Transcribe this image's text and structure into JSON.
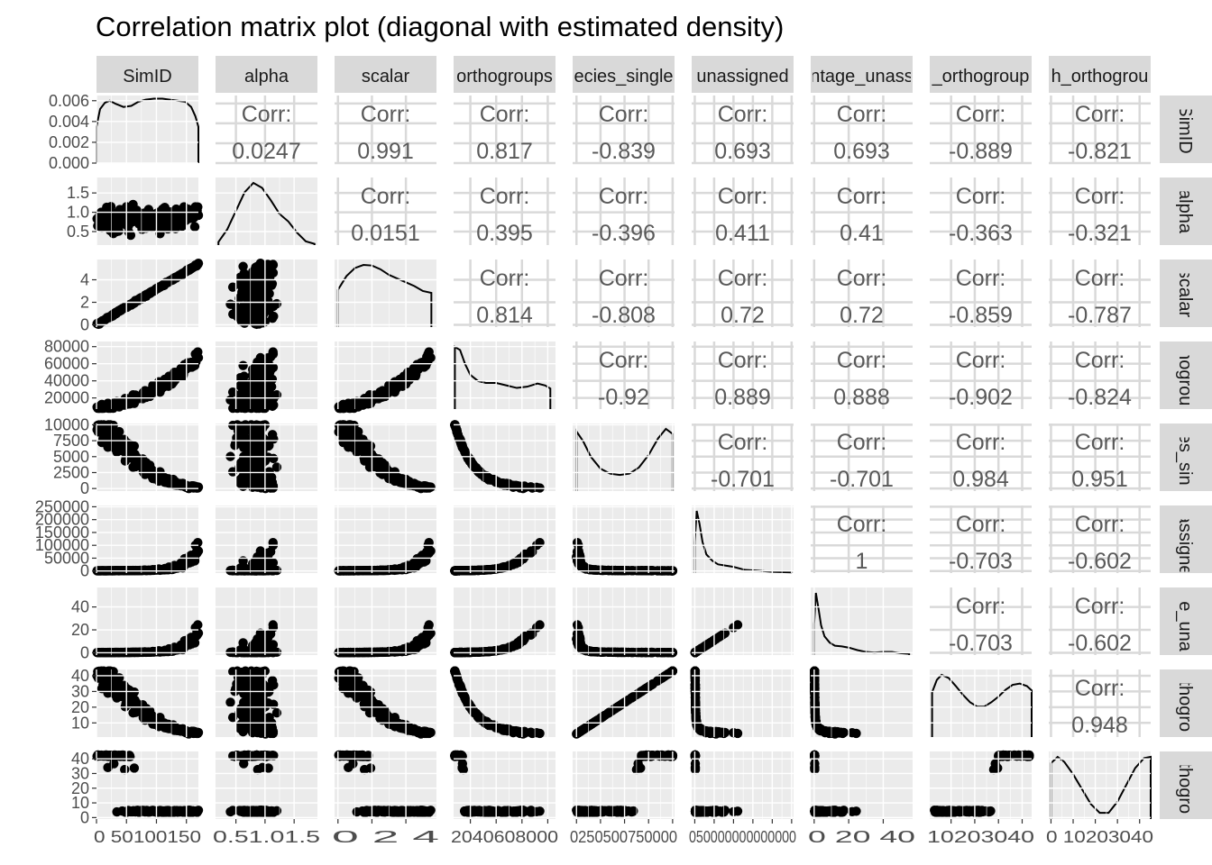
{
  "title": "Correlation matrix plot (diagonal with estimated density)",
  "chart_data": {
    "type": "scatter-matrix",
    "variables": [
      {
        "key": "SimID",
        "top_label": "SimID",
        "right_label": "SimID",
        "range": [
          0,
          170
        ],
        "ticks": [
          0,
          50,
          100,
          150
        ],
        "tick_labels": [
          "0",
          "50",
          "100",
          "150"
        ]
      },
      {
        "key": "alpha",
        "top_label": "alpha",
        "right_label": "alpha",
        "range": [
          0.15,
          1.9
        ],
        "ticks": [
          0.5,
          1.0,
          1.5
        ],
        "tick_labels": [
          "0.5",
          "1.0",
          "1.5"
        ]
      },
      {
        "key": "scalar",
        "top_label": "scalar",
        "right_label": "scalar",
        "range": [
          -0.2,
          5.8
        ],
        "ticks": [
          0,
          2,
          4
        ],
        "tick_labels": [
          "0",
          "2",
          "4"
        ]
      },
      {
        "key": "orthogroups",
        "top_label": "orthogroups",
        "right_label": "thogrou",
        "range": [
          7000,
          86000
        ],
        "ticks": [
          20000,
          40000,
          60000,
          80000
        ],
        "tick_labels": [
          "20000",
          "40000",
          "60000",
          "80000"
        ]
      },
      {
        "key": "species_single",
        "top_label": "ecies_single",
        "right_label": "ies_sin",
        "range": [
          -400,
          10200
        ],
        "ticks": [
          0,
          2500,
          5000,
          7500,
          10000
        ],
        "tick_labels": [
          "0",
          "2500",
          "5000",
          "7500",
          "10000"
        ]
      },
      {
        "key": "unassigned",
        "top_label": "unassigned",
        "right_label": "nassigne",
        "range": [
          -8000,
          255000
        ],
        "ticks": [
          0,
          50000,
          100000,
          150000,
          200000,
          250000
        ],
        "tick_labels": [
          "0",
          "50000",
          "100000",
          "150000",
          "200000",
          "250000"
        ]
      },
      {
        "key": "percentage_unassigned",
        "top_label": "ntage_unass",
        "right_label": "ge_una",
        "range": [
          -2,
          57
        ],
        "ticks": [
          0,
          20,
          40
        ],
        "tick_labels": [
          "0",
          "20",
          "40"
        ]
      },
      {
        "key": "orthogroup_a",
        "top_label": "_orthogroup",
        "right_label": "rthogro",
        "range": [
          1,
          44
        ],
        "ticks": [
          10,
          20,
          30,
          40
        ],
        "tick_labels": [
          "10",
          "20",
          "30",
          "40"
        ]
      },
      {
        "key": "orthogroup_b",
        "top_label": "h_orthogrou",
        "right_label": "rthogro",
        "range": [
          -1,
          45
        ],
        "ticks": [
          0,
          10,
          20,
          30,
          40
        ],
        "tick_labels": [
          "0",
          "10",
          "20",
          "30",
          "40"
        ]
      }
    ],
    "x_tick_labels_printed": [
      "0 50100150",
      "0.51.01.5",
      "0  2  4",
      "2040608000",
      "0250500750000",
      "050000000000000",
      "0  20  40",
      "10203040",
      "0 10203040"
    ],
    "density_y_axis": {
      "range": [
        0,
        0.0065
      ],
      "ticks": [
        0,
        0.002,
        0.004,
        0.006
      ],
      "tick_labels": [
        "0.000",
        "0.002",
        "0.004",
        "0.006"
      ]
    },
    "correlations": [
      {
        "row": 0,
        "col": 1,
        "label": "Corr:",
        "value": "0.0247"
      },
      {
        "row": 0,
        "col": 2,
        "label": "Corr:",
        "value": "0.991"
      },
      {
        "row": 0,
        "col": 3,
        "label": "Corr:",
        "value": "0.817"
      },
      {
        "row": 0,
        "col": 4,
        "label": "Corr:",
        "value": "-0.839"
      },
      {
        "row": 0,
        "col": 5,
        "label": "Corr:",
        "value": "0.693"
      },
      {
        "row": 0,
        "col": 6,
        "label": "Corr:",
        "value": "0.693"
      },
      {
        "row": 0,
        "col": 7,
        "label": "Corr:",
        "value": "-0.889"
      },
      {
        "row": 0,
        "col": 8,
        "label": "Corr:",
        "value": "-0.821"
      },
      {
        "row": 1,
        "col": 2,
        "label": "Corr:",
        "value": "0.0151"
      },
      {
        "row": 1,
        "col": 3,
        "label": "Corr:",
        "value": "0.395"
      },
      {
        "row": 1,
        "col": 4,
        "label": "Corr:",
        "value": "-0.396"
      },
      {
        "row": 1,
        "col": 5,
        "label": "Corr:",
        "value": "0.411"
      },
      {
        "row": 1,
        "col": 6,
        "label": "Corr:",
        "value": "0.41"
      },
      {
        "row": 1,
        "col": 7,
        "label": "Corr:",
        "value": "-0.363"
      },
      {
        "row": 1,
        "col": 8,
        "label": "Corr:",
        "value": "-0.321"
      },
      {
        "row": 2,
        "col": 3,
        "label": "Corr:",
        "value": "0.814"
      },
      {
        "row": 2,
        "col": 4,
        "label": "Corr:",
        "value": "-0.808"
      },
      {
        "row": 2,
        "col": 5,
        "label": "Corr:",
        "value": "0.72"
      },
      {
        "row": 2,
        "col": 6,
        "label": "Corr:",
        "value": "0.72"
      },
      {
        "row": 2,
        "col": 7,
        "label": "Corr:",
        "value": "-0.859"
      },
      {
        "row": 2,
        "col": 8,
        "label": "Corr:",
        "value": "-0.787"
      },
      {
        "row": 3,
        "col": 4,
        "label": "Corr:",
        "value": "-0.92"
      },
      {
        "row": 3,
        "col": 5,
        "label": "Corr:",
        "value": "0.889"
      },
      {
        "row": 3,
        "col": 6,
        "label": "Corr:",
        "value": "0.888"
      },
      {
        "row": 3,
        "col": 7,
        "label": "Corr:",
        "value": "-0.902"
      },
      {
        "row": 3,
        "col": 8,
        "label": "Corr:",
        "value": "-0.824"
      },
      {
        "row": 4,
        "col": 5,
        "label": "Corr:",
        "value": "-0.701"
      },
      {
        "row": 4,
        "col": 6,
        "label": "Corr:",
        "value": "-0.701"
      },
      {
        "row": 4,
        "col": 7,
        "label": "Corr:",
        "value": "0.984"
      },
      {
        "row": 4,
        "col": 8,
        "label": "Corr:",
        "value": "0.951"
      },
      {
        "row": 5,
        "col": 6,
        "label": "Corr:",
        "value": "1"
      },
      {
        "row": 5,
        "col": 7,
        "label": "Corr:",
        "value": "-0.703"
      },
      {
        "row": 5,
        "col": 8,
        "label": "Corr:",
        "value": "-0.602"
      },
      {
        "row": 6,
        "col": 7,
        "label": "Corr:",
        "value": "-0.703"
      },
      {
        "row": 6,
        "col": 8,
        "label": "Corr:",
        "value": "-0.602"
      },
      {
        "row": 7,
        "col": 8,
        "label": "Corr:",
        "value": "0.948"
      }
    ],
    "densities": [
      {
        "var": 0,
        "x": [
          0,
          6,
          14,
          22,
          32,
          45,
          58,
          70,
          82,
          96,
          110,
          122,
          135,
          148,
          158,
          165,
          170
        ],
        "y": [
          0.0035,
          0.0052,
          0.0058,
          0.006,
          0.0057,
          0.0054,
          0.0055,
          0.0059,
          0.0061,
          0.0062,
          0.0062,
          0.0061,
          0.006,
          0.0059,
          0.0054,
          0.0045,
          0.0035
        ]
      },
      {
        "var": 1,
        "x": [
          0.2,
          0.35,
          0.5,
          0.65,
          0.8,
          0.95,
          1.1,
          1.25,
          1.4,
          1.55,
          1.7,
          1.85
        ],
        "y": [
          0.05,
          0.25,
          0.55,
          0.85,
          1.0,
          0.92,
          0.72,
          0.5,
          0.38,
          0.2,
          0.06,
          0.02
        ]
      },
      {
        "var": 2,
        "x": [
          0,
          0.5,
          1,
          1.5,
          2,
          2.5,
          3,
          3.5,
          4,
          4.5,
          5,
          5.5
        ],
        "y": [
          0.6,
          0.82,
          0.95,
          1.0,
          0.99,
          0.93,
          0.84,
          0.78,
          0.72,
          0.66,
          0.58,
          0.55
        ]
      },
      {
        "var": 3,
        "x": [
          8000,
          12000,
          16000,
          20000,
          26000,
          32000,
          40000,
          48000,
          56000,
          64000,
          72000,
          78000,
          82000
        ],
        "y": [
          1.0,
          0.95,
          0.72,
          0.55,
          0.45,
          0.42,
          0.42,
          0.38,
          0.34,
          0.36,
          0.41,
          0.38,
          0.33
        ]
      },
      {
        "var": 4,
        "x": [
          0,
          700,
          1500,
          2500,
          3500,
          4500,
          5500,
          6500,
          7500,
          8500,
          9300,
          10000
        ],
        "y": [
          0.96,
          0.8,
          0.55,
          0.36,
          0.28,
          0.26,
          0.28,
          0.38,
          0.58,
          0.85,
          1.0,
          0.92
        ]
      },
      {
        "var": 5,
        "x": [
          0,
          5000,
          12000,
          20000,
          30000,
          45000,
          60000,
          80000,
          100000,
          130000,
          160000,
          200000,
          250000
        ],
        "y": [
          0.5,
          1.0,
          0.8,
          0.5,
          0.3,
          0.2,
          0.14,
          0.12,
          0.1,
          0.05,
          0.04,
          0.02,
          0.01
        ]
      },
      {
        "var": 6,
        "x": [
          0,
          1,
          2.5,
          4,
          6,
          9,
          12,
          16,
          20,
          25,
          30,
          35,
          40,
          45,
          50,
          55
        ],
        "y": [
          0.5,
          1.0,
          0.75,
          0.48,
          0.3,
          0.2,
          0.15,
          0.14,
          0.12,
          0.08,
          0.05,
          0.04,
          0.05,
          0.05,
          0.03,
          0.02
        ]
      },
      {
        "var": 7,
        "x": [
          2,
          4,
          6,
          9,
          12,
          15,
          18,
          21,
          24,
          27,
          30,
          33,
          36,
          39,
          42,
          44
        ],
        "y": [
          0.72,
          0.92,
          1.0,
          0.95,
          0.82,
          0.68,
          0.56,
          0.49,
          0.49,
          0.56,
          0.65,
          0.76,
          0.84,
          0.86,
          0.82,
          0.75
        ]
      },
      {
        "var": 8,
        "x": [
          0,
          3,
          6,
          10,
          14,
          18,
          22,
          26,
          30,
          34,
          38,
          42,
          45
        ],
        "y": [
          0.9,
          1.0,
          0.92,
          0.72,
          0.48,
          0.24,
          0.1,
          0.1,
          0.28,
          0.55,
          0.82,
          0.98,
          1.0
        ]
      }
    ]
  }
}
